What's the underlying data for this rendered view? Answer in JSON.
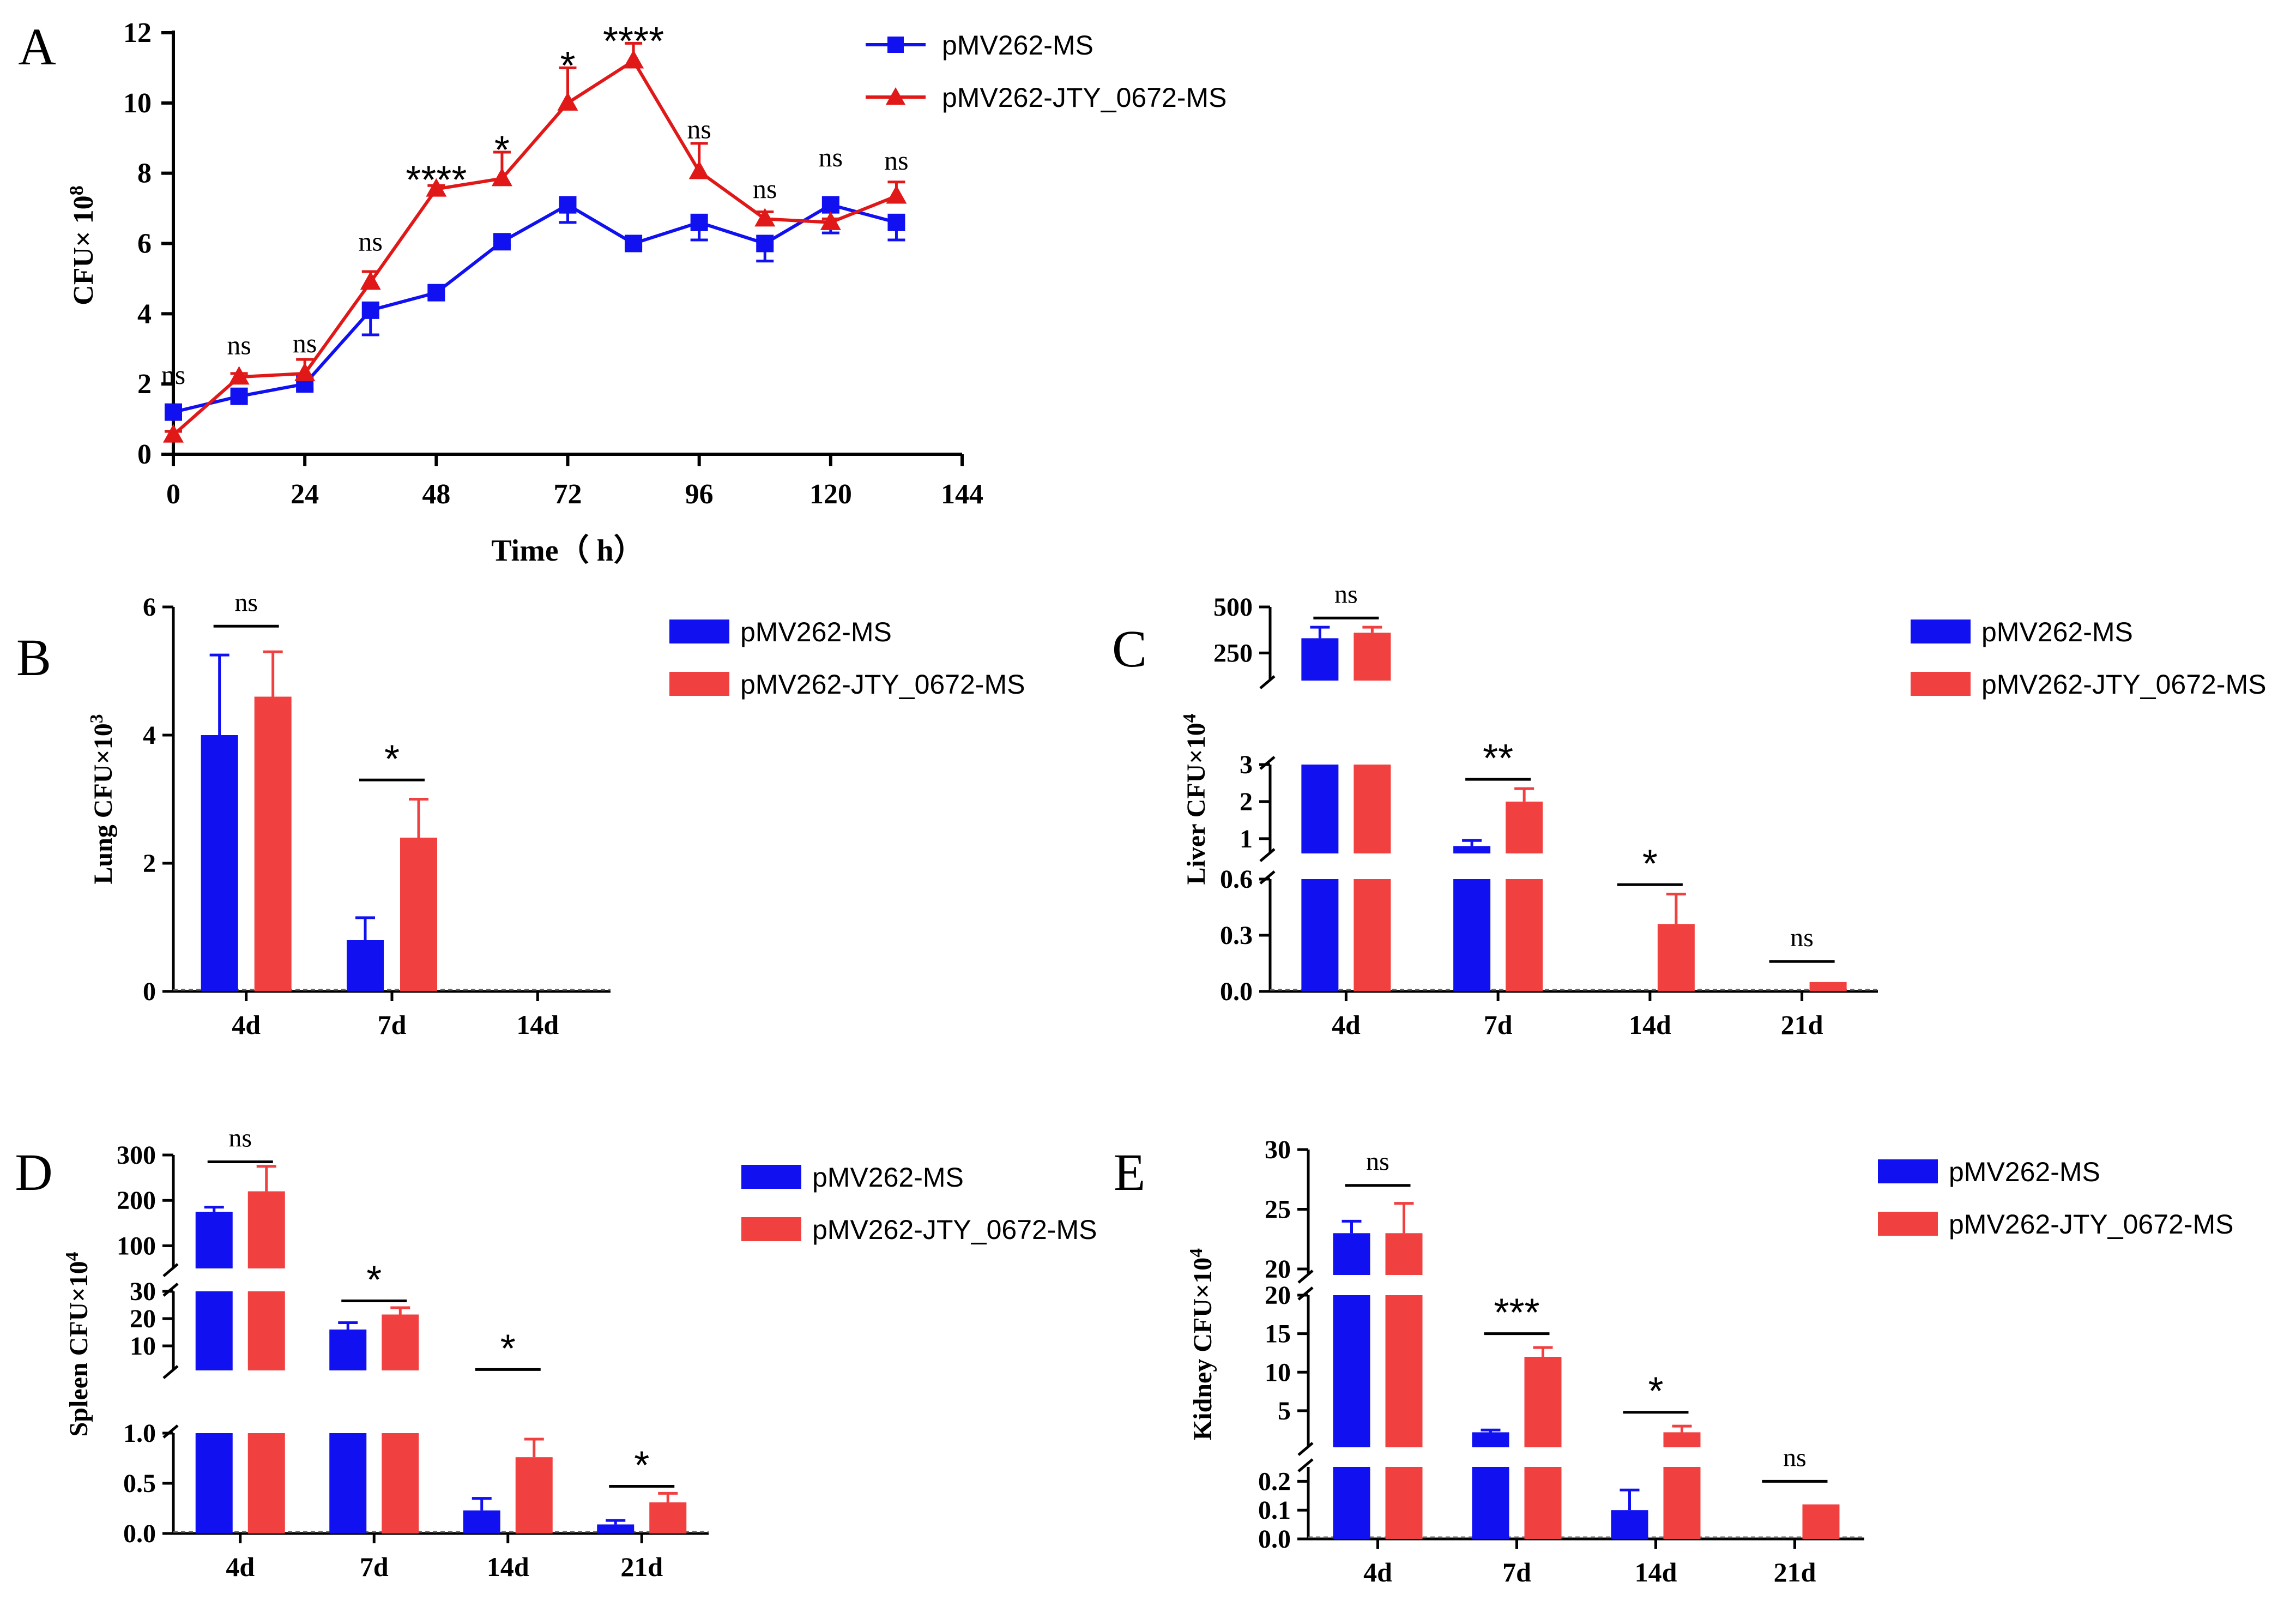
{
  "colors": {
    "ms": "#1010f0",
    "jty": "#f04040",
    "axis": "#000000",
    "jty_line": "#e01818"
  },
  "legend": {
    "ms": "pMV262-MS",
    "jty": "pMV262-JTY_0672-MS"
  },
  "chart_data": [
    {
      "id": "A",
      "panel_label": "A",
      "type": "line",
      "title": "",
      "xlabel": "Time（ h）",
      "ylabel": "CFU× 10",
      "ylabel_sup": "8",
      "xlim": [
        0,
        144
      ],
      "ylim": [
        0,
        12
      ],
      "xticks": [
        0,
        24,
        48,
        72,
        96,
        120,
        144
      ],
      "yticks": [
        0,
        2,
        4,
        6,
        8,
        10,
        12
      ],
      "x": [
        0,
        12,
        24,
        36,
        48,
        60,
        72,
        84,
        96,
        108,
        120,
        132
      ],
      "series": [
        {
          "name": "pMV262-MS",
          "marker": "square",
          "values": [
            1.2,
            1.65,
            2.0,
            4.1,
            4.6,
            6.05,
            7.1,
            6.0,
            6.6,
            6.0,
            7.1,
            6.6
          ],
          "errors": [
            0.2,
            0.15,
            0.15,
            0.7,
            0.1,
            0.1,
            0.5,
            0.1,
            0.5,
            0.5,
            0.8,
            0.5
          ]
        },
        {
          "name": "pMV262-JTY_0672-MS",
          "marker": "triangle",
          "values": [
            0.55,
            2.2,
            2.3,
            4.9,
            7.55,
            7.85,
            10.0,
            11.2,
            8.05,
            6.7,
            6.6,
            7.35
          ],
          "errors": [
            0.1,
            0.1,
            0.4,
            0.3,
            0.1,
            0.75,
            1.0,
            0.5,
            0.8,
            0.2,
            0.1,
            0.4
          ]
        }
      ],
      "annotations": [
        {
          "x": 0,
          "text": "ns",
          "y": 2.0
        },
        {
          "x": 12,
          "text": "ns",
          "y": 2.85
        },
        {
          "x": 24,
          "text": "ns",
          "y": 2.9
        },
        {
          "x": 36,
          "text": "ns",
          "y": 5.8
        },
        {
          "x": 48,
          "text": "****",
          "y": 8.05
        },
        {
          "x": 60,
          "text": "*",
          "y": 8.9
        },
        {
          "x": 72,
          "text": "*",
          "y": 11.3
        },
        {
          "x": 84,
          "text": "****",
          "y": 12.0
        },
        {
          "x": 96,
          "text": "ns",
          "y": 9.0
        },
        {
          "x": 108,
          "text": "ns",
          "y": 7.3
        },
        {
          "x": 120,
          "text": "ns",
          "y": 8.2
        },
        {
          "x": 132,
          "text": "ns",
          "y": 8.1
        }
      ]
    },
    {
      "id": "B",
      "panel_label": "B",
      "type": "bar",
      "ylabel": "Lung CFU×10",
      "ylabel_sup": "3",
      "categories": [
        "4d",
        "7d",
        "14d"
      ],
      "series": [
        {
          "name": "pMV262-MS",
          "values": [
            4.0,
            0.8,
            0
          ],
          "errors": [
            1.25,
            0.35,
            0
          ]
        },
        {
          "name": "pMV262-JTY_0672-MS",
          "values": [
            4.6,
            2.4,
            0
          ],
          "errors": [
            0.7,
            0.6,
            0
          ]
        }
      ],
      "segments": [
        {
          "range": [
            0,
            6
          ],
          "ticks": [
            0,
            2,
            4,
            6
          ],
          "labels": [
            "0",
            "2",
            "4",
            "6"
          ]
        }
      ],
      "significance": [
        {
          "category": 0,
          "text": "ns",
          "y": 5.7
        },
        {
          "category": 1,
          "text": "*",
          "y": 3.3
        }
      ]
    },
    {
      "id": "C",
      "panel_label": "C",
      "type": "bar",
      "ylabel": "Liver CFU×10",
      "ylabel_sup": "4",
      "categories": [
        "4d",
        "7d",
        "14d",
        "21d"
      ],
      "series": [
        {
          "name": "pMV262-MS",
          "values": [
            330,
            0.8,
            0,
            0
          ],
          "errors": [
            60,
            0.15,
            0,
            0
          ]
        },
        {
          "name": "pMV262-JTY_0672-MS",
          "values": [
            360,
            2.0,
            0.36,
            0.05
          ],
          "errors": [
            30,
            0.35,
            0.16,
            0
          ]
        }
      ],
      "segments": [
        {
          "range": [
            0,
            0.6
          ],
          "ticks": [
            0,
            0.3,
            0.6
          ],
          "labels": [
            "0.0",
            "0.3",
            "0.6"
          ]
        },
        {
          "range": [
            0.6,
            3
          ],
          "ticks": [
            1,
            2,
            3
          ],
          "labels": [
            "1",
            "2",
            "3"
          ]
        },
        {
          "range": [
            100,
            500
          ],
          "ticks": [
            250,
            500
          ],
          "labels": [
            "250",
            "500"
          ]
        }
      ],
      "significance": [
        {
          "category": 0,
          "text": "ns",
          "y": 440
        },
        {
          "category": 1,
          "text": "**",
          "y": 2.6
        },
        {
          "category": 2,
          "text": "*",
          "y": 0.57
        },
        {
          "category": 3,
          "text": "ns",
          "y": 0.16
        }
      ]
    },
    {
      "id": "D",
      "panel_label": "D",
      "type": "bar",
      "ylabel": "Spleen CFU×10",
      "ylabel_sup": "4",
      "categories": [
        "4d",
        "7d",
        "14d",
        "21d"
      ],
      "series": [
        {
          "name": "pMV262-MS",
          "values": [
            175,
            16,
            0.23,
            0.09
          ],
          "errors": [
            10,
            2.5,
            0.12,
            0.04
          ]
        },
        {
          "name": "pMV262-JTY_0672-MS",
          "values": [
            220,
            21.5,
            0.76,
            0.31
          ],
          "errors": [
            55,
            2.5,
            0.18,
            0.09
          ]
        }
      ],
      "segments": [
        {
          "range": [
            0,
            1.0
          ],
          "ticks": [
            0,
            0.5,
            1.0
          ],
          "labels": [
            "0.0",
            "0.5",
            "1.0"
          ]
        },
        {
          "range": [
            1.0,
            30
          ],
          "ticks": [
            10,
            20,
            30
          ],
          "labels": [
            "10",
            "20",
            "30"
          ]
        },
        {
          "range": [
            50,
            300
          ],
          "ticks": [
            100,
            200,
            300
          ],
          "labels": [
            "100",
            "200",
            "300"
          ]
        }
      ],
      "significance": [
        {
          "category": 0,
          "text": "ns",
          "y": 285
        },
        {
          "category": 1,
          "text": "*",
          "y": 26.5
        },
        {
          "category": 2,
          "text": "*",
          "y": 1.33
        },
        {
          "category": 3,
          "text": "*",
          "y": 0.47
        }
      ]
    },
    {
      "id": "E",
      "panel_label": "E",
      "type": "bar",
      "ylabel": "Kidney CFU×10",
      "ylabel_sup": "4",
      "categories": [
        "4d",
        "7d",
        "14d",
        "21d"
      ],
      "series": [
        {
          "name": "pMV262-MS",
          "values": [
            23,
            2.2,
            0.1,
            0
          ],
          "errors": [
            1.0,
            0.3,
            0.07,
            0
          ]
        },
        {
          "name": "pMV262-JTY_0672-MS",
          "values": [
            23,
            12,
            2.2,
            0.12
          ],
          "errors": [
            2.5,
            1.2,
            0.8,
            0
          ]
        }
      ],
      "segments": [
        {
          "range": [
            0,
            0.25
          ],
          "ticks": [
            0,
            0.1,
            0.2
          ],
          "labels": [
            "0.0",
            "0.1",
            "0.2"
          ]
        },
        {
          "range": [
            0.25,
            20
          ],
          "ticks": [
            5,
            10,
            15,
            20
          ],
          "labels": [
            "5",
            "10",
            "15",
            "20"
          ]
        },
        {
          "range": [
            19.5,
            30
          ],
          "ticks": [
            20,
            25,
            30
          ],
          "labels": [
            "20",
            "25",
            "30"
          ]
        }
      ],
      "significance": [
        {
          "category": 0,
          "text": "ns",
          "y": 27.0
        },
        {
          "category": 1,
          "text": "***",
          "y": 15.0
        },
        {
          "category": 2,
          "text": "*",
          "y": 4.8
        },
        {
          "category": 3,
          "text": "ns",
          "y": 0.2
        }
      ]
    }
  ]
}
